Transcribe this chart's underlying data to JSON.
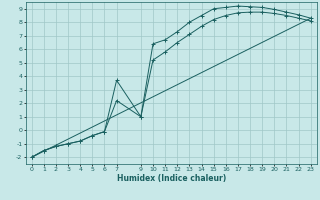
{
  "xlabel": "Humidex (Indice chaleur)",
  "bg_color": "#c8e8e8",
  "grid_color": "#a0c8c8",
  "line_color": "#1a6060",
  "xlim": [
    -0.5,
    23.5
  ],
  "ylim": [
    -2.5,
    9.5
  ],
  "xticks": [
    0,
    1,
    2,
    3,
    4,
    5,
    6,
    7,
    9,
    10,
    11,
    12,
    13,
    14,
    15,
    16,
    17,
    18,
    19,
    20,
    21,
    22,
    23
  ],
  "yticks": [
    -2,
    -1,
    0,
    1,
    2,
    3,
    4,
    5,
    6,
    7,
    8,
    9
  ],
  "line1_x": [
    0,
    1,
    2,
    3,
    4,
    5,
    6,
    7,
    9,
    10,
    11,
    12,
    13,
    14,
    15,
    16,
    17,
    18,
    19,
    20,
    21,
    22,
    23
  ],
  "line1_y": [
    -2,
    -1.5,
    -1.2,
    -1.0,
    -0.8,
    -0.4,
    -0.1,
    3.7,
    1.0,
    6.4,
    6.7,
    7.3,
    8.0,
    8.5,
    9.0,
    9.1,
    9.2,
    9.15,
    9.1,
    8.95,
    8.75,
    8.55,
    8.3
  ],
  "line2_x": [
    0,
    1,
    2,
    3,
    4,
    5,
    6,
    7,
    9,
    10,
    11,
    12,
    13,
    14,
    15,
    16,
    17,
    18,
    19,
    20,
    21,
    22,
    23
  ],
  "line2_y": [
    -2,
    -1.5,
    -1.2,
    -1.0,
    -0.8,
    -0.4,
    -0.1,
    2.2,
    1.0,
    5.2,
    5.8,
    6.5,
    7.1,
    7.7,
    8.2,
    8.5,
    8.7,
    8.75,
    8.75,
    8.65,
    8.5,
    8.3,
    8.1
  ],
  "line3_x": [
    0,
    23
  ],
  "line3_y": [
    -2,
    8.3
  ]
}
